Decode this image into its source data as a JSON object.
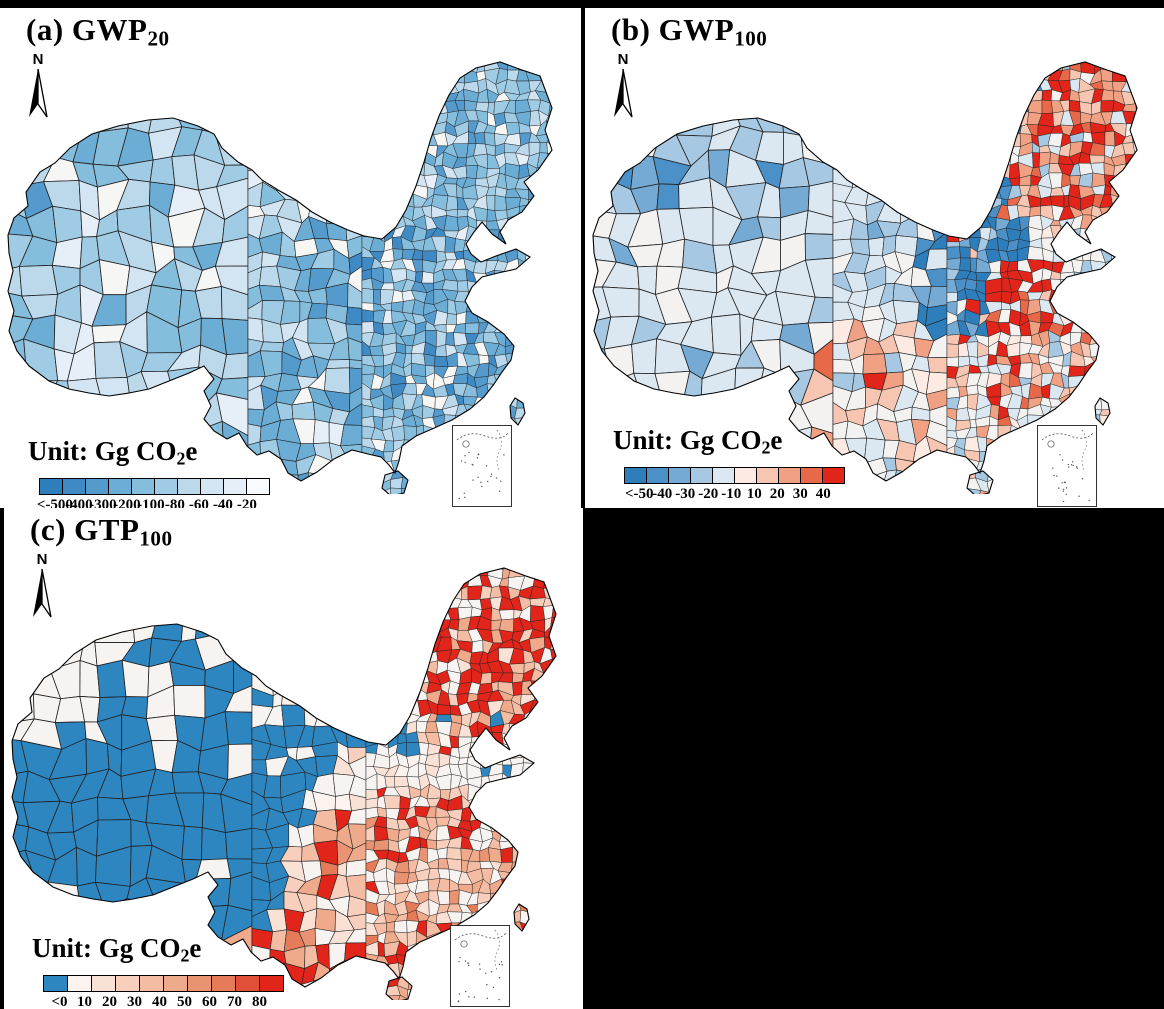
{
  "figure": {
    "background": "#000000",
    "panel_background": "#ffffff",
    "map_outline_color": "#000000",
    "panels": [
      {
        "id": "a",
        "title": "(a) GWP",
        "title_sub": "20",
        "north_label": "N",
        "unit_prefix": "Unit: Gg CO",
        "unit_sub": "2",
        "unit_suffix": "e",
        "legend": {
          "colors": [
            "#2e7ebc",
            "#3f8ac4",
            "#549acc",
            "#6badd5",
            "#85bddd",
            "#9fcbe4",
            "#bcd9ec",
            "#d3e5f3",
            "#e6eff8",
            "#f8fbfd"
          ],
          "ticks": [
            "<-500",
            "-400",
            "-300",
            "-200",
            "-100",
            "-80",
            "-60",
            "-40",
            "-20"
          ]
        },
        "map_white": "#f6f6f4"
      },
      {
        "id": "b",
        "title": "(b) GWP",
        "title_sub": "100",
        "north_label": "N",
        "unit_prefix": "Unit: Gg CO",
        "unit_sub": "2",
        "unit_suffix": "e",
        "legend": {
          "colors": [
            "#2e7ebc",
            "#4b90c6",
            "#74aad4",
            "#a6c8e2",
            "#dbe8f2",
            "#fceae3",
            "#f7c6b2",
            "#f0a183",
            "#e8684a",
            "#e1251b"
          ],
          "ticks": [
            "<-50",
            "-40",
            "-30",
            "-20",
            "-10",
            "10",
            "20",
            "30",
            "40"
          ]
        },
        "map_white": "#f3f2f0"
      },
      {
        "id": "c",
        "title": "(c) GTP",
        "title_sub": "100",
        "north_label": "N",
        "unit_prefix": "Unit: Gg CO",
        "unit_sub": "2",
        "unit_suffix": "e",
        "legend": {
          "colors": [
            "#2e86c0",
            "#fdf3ee",
            "#fae1d5",
            "#f7cfbc",
            "#f3bca3",
            "#efa98b",
            "#ea9372",
            "#e57b59",
            "#e05038",
            "#e1251b"
          ],
          "ticks": [
            "<0",
            "10",
            "20",
            "30",
            "40",
            "50",
            "60",
            "70",
            "80"
          ]
        },
        "map_white": "#f6f3f0"
      }
    ]
  }
}
